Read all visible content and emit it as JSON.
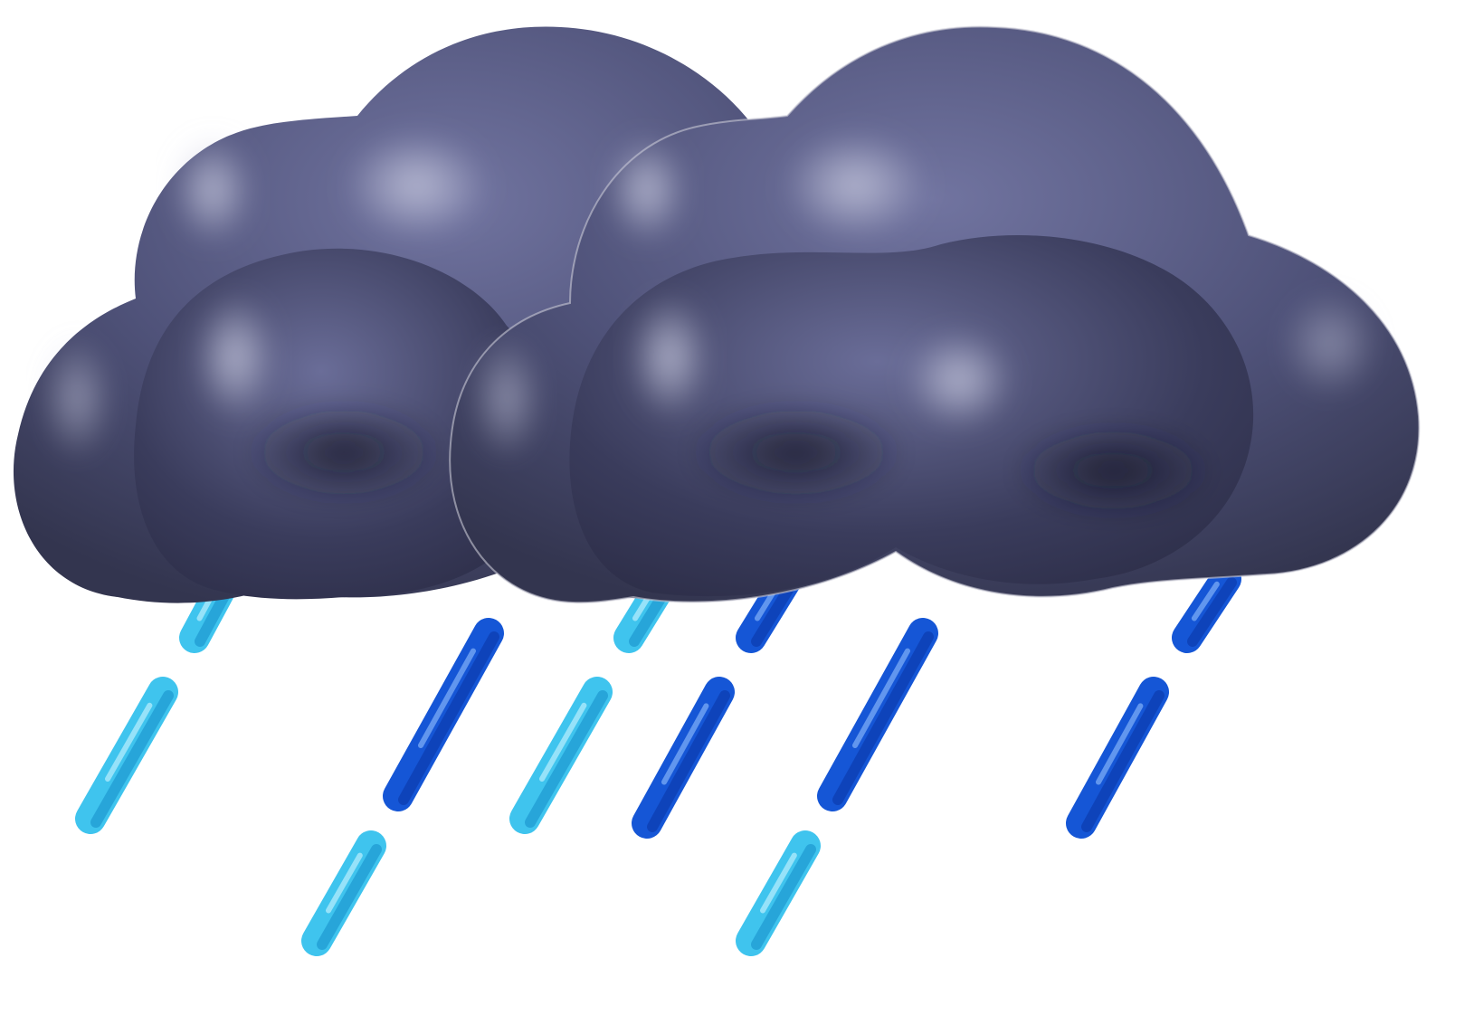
{
  "icon": {
    "name": "heavy-rain-weather-icon",
    "cloud_count": 2,
    "raindrop_count": 14
  },
  "colors": {
    "background": "#ffffff",
    "cloud_light": "#9a9cb8",
    "cloud_mid": "#5a5d85",
    "cloud_dark": "#26273f",
    "drop_light": "#3fc4ee",
    "drop_light_highlight": "#a6e8fb",
    "drop_dark": "#1556d6",
    "drop_dark_highlight": "#6fa2f3"
  }
}
